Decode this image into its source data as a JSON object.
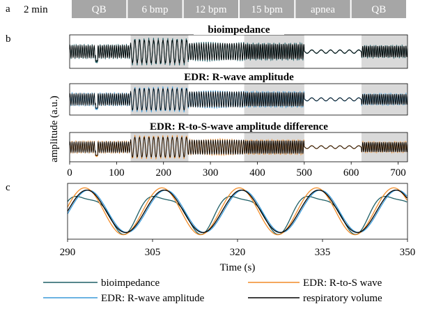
{
  "figure": {
    "panel_letters": [
      "a",
      "b",
      "c"
    ],
    "protocol": {
      "scale_label": "2 min",
      "segments": [
        {
          "label": "QB",
          "start": 0,
          "end": 120
        },
        {
          "label": "6 bmp",
          "start": 120,
          "end": 240
        },
        {
          "label": "12 bpm",
          "start": 240,
          "end": 360
        },
        {
          "label": "15 bpm",
          "start": 360,
          "end": 480
        },
        {
          "label": "apnea",
          "start": 480,
          "end": 600
        },
        {
          "label": "QB",
          "start": 600,
          "end": 720
        }
      ]
    },
    "ylabel": "amplitude (a.u.)"
  },
  "chart_data": [
    {
      "type": "line",
      "panel": "b",
      "title": "bioimpedance",
      "xlim": [
        0,
        720
      ],
      "shaded_intervals": [
        [
          130,
          253
        ],
        [
          372,
          500
        ],
        [
          622,
          720
        ]
      ],
      "series": [
        {
          "name": "bioimpedance",
          "color": "#1f5f66"
        },
        {
          "name": "respiratory volume",
          "color": "#000000"
        }
      ]
    },
    {
      "type": "line",
      "panel": "b",
      "title": "EDR: R-wave amplitude",
      "xlim": [
        0,
        720
      ],
      "shaded_intervals": [
        [
          130,
          253
        ],
        [
          372,
          500
        ],
        [
          622,
          720
        ]
      ],
      "series": [
        {
          "name": "EDR: R-wave amplitude",
          "color": "#3a9ad9"
        },
        {
          "name": "respiratory volume",
          "color": "#000000"
        }
      ]
    },
    {
      "type": "line",
      "panel": "b",
      "title": "EDR: R-to-S-wave amplitude difference",
      "xlim": [
        0,
        720
      ],
      "xticks": [
        0,
        100,
        200,
        300,
        400,
        500,
        600,
        700
      ],
      "shaded_intervals": [
        [
          130,
          253
        ],
        [
          372,
          500
        ],
        [
          622,
          720
        ]
      ],
      "series": [
        {
          "name": "EDR: R-to-S wave",
          "color": "#f28c28"
        },
        {
          "name": "respiratory volume",
          "color": "#000000"
        }
      ]
    },
    {
      "type": "line",
      "panel": "c",
      "xlabel": "Time (s)",
      "xlim": [
        290,
        350
      ],
      "xticks": [
        290,
        305,
        320,
        335,
        350
      ],
      "series": [
        {
          "name": "bioimpedance",
          "color": "#1f5f66"
        },
        {
          "name": "EDR: R-wave amplitude",
          "color": "#3a9ad9"
        },
        {
          "name": "EDR: R-to-S wave",
          "color": "#f28c28"
        },
        {
          "name": "respiratory volume",
          "color": "#000000"
        }
      ]
    }
  ],
  "legend": [
    {
      "label": "bioimpedance",
      "color": "#1f5f66"
    },
    {
      "label": "EDR: R-to-S wave",
      "color": "#f28c28"
    },
    {
      "label": "EDR: R-wave amplitude",
      "color": "#3a9ad9"
    },
    {
      "label": "respiratory volume",
      "color": "#000000"
    }
  ]
}
